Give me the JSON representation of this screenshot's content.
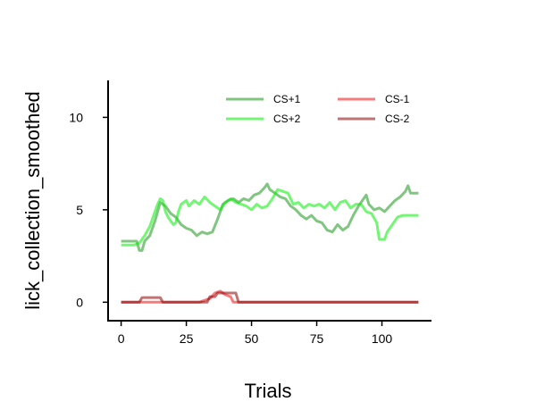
{
  "chart_data": {
    "type": "line",
    "title": "",
    "xlabel": "Trials",
    "ylabel": "lick_collection_smoothed",
    "xlim": [
      -5,
      119
    ],
    "ylim": [
      -1,
      12
    ],
    "xticks": [
      0,
      25,
      50,
      75,
      100
    ],
    "yticks": [
      0,
      5,
      10
    ],
    "grid": false,
    "legend": {
      "placement": "top-right",
      "columns": 2
    },
    "series": [
      {
        "name": "CS+1",
        "color": "#2ca02c",
        "opacity": 0.6,
        "points": [
          [
            0,
            3.3
          ],
          [
            6,
            3.3
          ],
          [
            7,
            2.8
          ],
          [
            8,
            2.8
          ],
          [
            9,
            3.3
          ],
          [
            11,
            3.6
          ],
          [
            13,
            4.4
          ],
          [
            15,
            5.4
          ],
          [
            17,
            5.2
          ],
          [
            19,
            4.8
          ],
          [
            21,
            4.6
          ],
          [
            23,
            4.2
          ],
          [
            25,
            4.0
          ],
          [
            27,
            3.9
          ],
          [
            29,
            3.6
          ],
          [
            31,
            3.8
          ],
          [
            33,
            3.7
          ],
          [
            35,
            3.8
          ],
          [
            37,
            4.5
          ],
          [
            39,
            5.3
          ],
          [
            41,
            5.5
          ],
          [
            43,
            5.6
          ],
          [
            45,
            5.4
          ],
          [
            47,
            5.6
          ],
          [
            49,
            5.5
          ],
          [
            51,
            5.8
          ],
          [
            53,
            5.9
          ],
          [
            55,
            6.2
          ],
          [
            56,
            6.4
          ],
          [
            57,
            6.1
          ],
          [
            59,
            5.9
          ],
          [
            61,
            5.7
          ],
          [
            63,
            5.6
          ],
          [
            65,
            5.2
          ],
          [
            67,
            5.0
          ],
          [
            69,
            4.7
          ],
          [
            71,
            4.5
          ],
          [
            73,
            4.7
          ],
          [
            75,
            4.4
          ],
          [
            77,
            4.3
          ],
          [
            79,
            3.9
          ],
          [
            81,
            3.8
          ],
          [
            83,
            4.2
          ],
          [
            85,
            3.9
          ],
          [
            87,
            4.1
          ],
          [
            89,
            4.7
          ],
          [
            91,
            5.2
          ],
          [
            93,
            5.6
          ],
          [
            94,
            5.8
          ],
          [
            95,
            5.3
          ],
          [
            97,
            5.0
          ],
          [
            99,
            5.1
          ],
          [
            101,
            4.9
          ],
          [
            103,
            5.2
          ],
          [
            105,
            5.5
          ],
          [
            107,
            5.7
          ],
          [
            109,
            6.0
          ],
          [
            110,
            6.3
          ],
          [
            111,
            5.9
          ],
          [
            114,
            5.9
          ]
        ]
      },
      {
        "name": "CS+2",
        "color": "#00ee00",
        "opacity": 0.55,
        "points": [
          [
            0,
            3.1
          ],
          [
            5,
            3.1
          ],
          [
            7,
            3.2
          ],
          [
            9,
            3.6
          ],
          [
            11,
            4.1
          ],
          [
            13,
            4.9
          ],
          [
            14,
            5.3
          ],
          [
            15,
            5.6
          ],
          [
            16,
            5.5
          ],
          [
            17,
            4.9
          ],
          [
            18,
            4.6
          ],
          [
            20,
            4.2
          ],
          [
            21,
            4.3
          ],
          [
            22,
            4.9
          ],
          [
            23,
            5.3
          ],
          [
            25,
            5.5
          ],
          [
            26,
            5.2
          ],
          [
            28,
            5.5
          ],
          [
            30,
            5.3
          ],
          [
            32,
            5.7
          ],
          [
            34,
            5.4
          ],
          [
            36,
            5.2
          ],
          [
            38,
            5.0
          ],
          [
            40,
            5.4
          ],
          [
            42,
            5.6
          ],
          [
            44,
            5.4
          ],
          [
            46,
            5.3
          ],
          [
            48,
            5.2
          ],
          [
            50,
            5.0
          ],
          [
            52,
            5.3
          ],
          [
            54,
            5.1
          ],
          [
            56,
            5.2
          ],
          [
            58,
            5.6
          ],
          [
            60,
            6.1
          ],
          [
            62,
            6.0
          ],
          [
            64,
            5.9
          ],
          [
            66,
            5.3
          ],
          [
            68,
            5.4
          ],
          [
            70,
            5.1
          ],
          [
            72,
            5.3
          ],
          [
            74,
            5.2
          ],
          [
            76,
            5.3
          ],
          [
            78,
            5.1
          ],
          [
            80,
            5.4
          ],
          [
            82,
            5.0
          ],
          [
            84,
            5.4
          ],
          [
            86,
            5.5
          ],
          [
            88,
            5.1
          ],
          [
            90,
            5.3
          ],
          [
            92,
            5.3
          ],
          [
            94,
            4.9
          ],
          [
            96,
            4.8
          ],
          [
            98,
            4.3
          ],
          [
            99,
            3.4
          ],
          [
            101,
            3.4
          ],
          [
            102,
            3.8
          ],
          [
            104,
            4.2
          ],
          [
            106,
            4.6
          ],
          [
            108,
            4.7
          ],
          [
            114,
            4.7
          ]
        ]
      },
      {
        "name": "CS-1",
        "color": "#ee1111",
        "opacity": 0.55,
        "points": [
          [
            0,
            0
          ],
          [
            30,
            0
          ],
          [
            32,
            0.1
          ],
          [
            34,
            0.2
          ],
          [
            36,
            0.5
          ],
          [
            38,
            0.6
          ],
          [
            40,
            0.4
          ],
          [
            42,
            0.3
          ],
          [
            43,
            0.0
          ],
          [
            114,
            0
          ]
        ]
      },
      {
        "name": "CS-2",
        "color": "#8b0000",
        "opacity": 0.55,
        "points": [
          [
            0,
            0
          ],
          [
            7,
            0
          ],
          [
            8,
            0.25
          ],
          [
            15,
            0.25
          ],
          [
            16,
            0
          ],
          [
            33,
            0
          ],
          [
            34,
            0.3
          ],
          [
            36,
            0.3
          ],
          [
            37,
            0.5
          ],
          [
            44,
            0.5
          ],
          [
            45,
            0
          ],
          [
            114,
            0
          ]
        ]
      }
    ]
  }
}
